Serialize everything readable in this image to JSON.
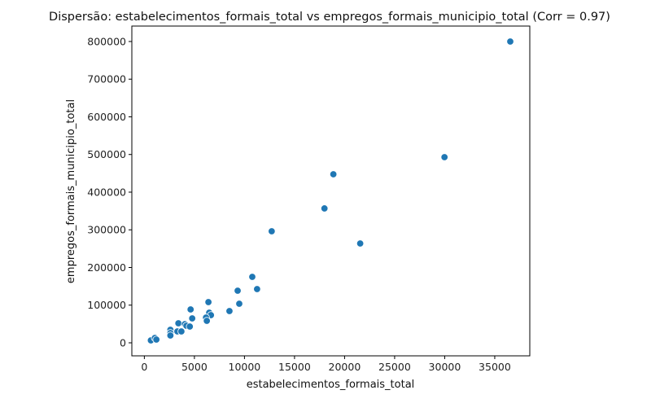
{
  "chart_data": {
    "type": "scatter",
    "title": "Dispersão: estabelecimentos_formais_total vs empregos_formais_municipio_total (Corr = 0.97)",
    "xlabel": "estabelecimentos_formais_total",
    "ylabel": "empregos_formais_municipio_total",
    "xlim": [
      -1250,
      38500
    ],
    "ylim": [
      -34600,
      841000
    ],
    "xticks": [
      0,
      5000,
      10000,
      15000,
      20000,
      25000,
      30000,
      35000
    ],
    "yticks": [
      0,
      100000,
      200000,
      300000,
      400000,
      500000,
      600000,
      700000,
      800000
    ],
    "xtick_labels": [
      "0",
      "5000",
      "10000",
      "15000",
      "20000",
      "25000",
      "30000",
      "35000"
    ],
    "ytick_labels": [
      "0",
      "100000",
      "200000",
      "300000",
      "400000",
      "500000",
      "600000",
      "700000",
      "800000"
    ],
    "grid": false,
    "color": "#1f77b4",
    "points": [
      [
        650,
        6500
      ],
      [
        1050,
        13000
      ],
      [
        1200,
        8600
      ],
      [
        2600,
        34600
      ],
      [
        2600,
        26000
      ],
      [
        2600,
        19500
      ],
      [
        3300,
        30300
      ],
      [
        3700,
        30300
      ],
      [
        3400,
        51900
      ],
      [
        4050,
        49700
      ],
      [
        4200,
        45400
      ],
      [
        4540,
        43200
      ],
      [
        4620,
        88600
      ],
      [
        4780,
        64900
      ],
      [
        6400,
        108100
      ],
      [
        6480,
        80000
      ],
      [
        6650,
        73500
      ],
      [
        6160,
        67000
      ],
      [
        6240,
        58400
      ],
      [
        8500,
        84300
      ],
      [
        9480,
        103800
      ],
      [
        9320,
        138400
      ],
      [
        10780,
        175100
      ],
      [
        11260,
        142700
      ],
      [
        12720,
        296200
      ],
      [
        17990,
        356800
      ],
      [
        18880,
        447600
      ],
      [
        21560,
        263800
      ],
      [
        29980,
        493000
      ],
      [
        36550,
        800000
      ]
    ]
  }
}
